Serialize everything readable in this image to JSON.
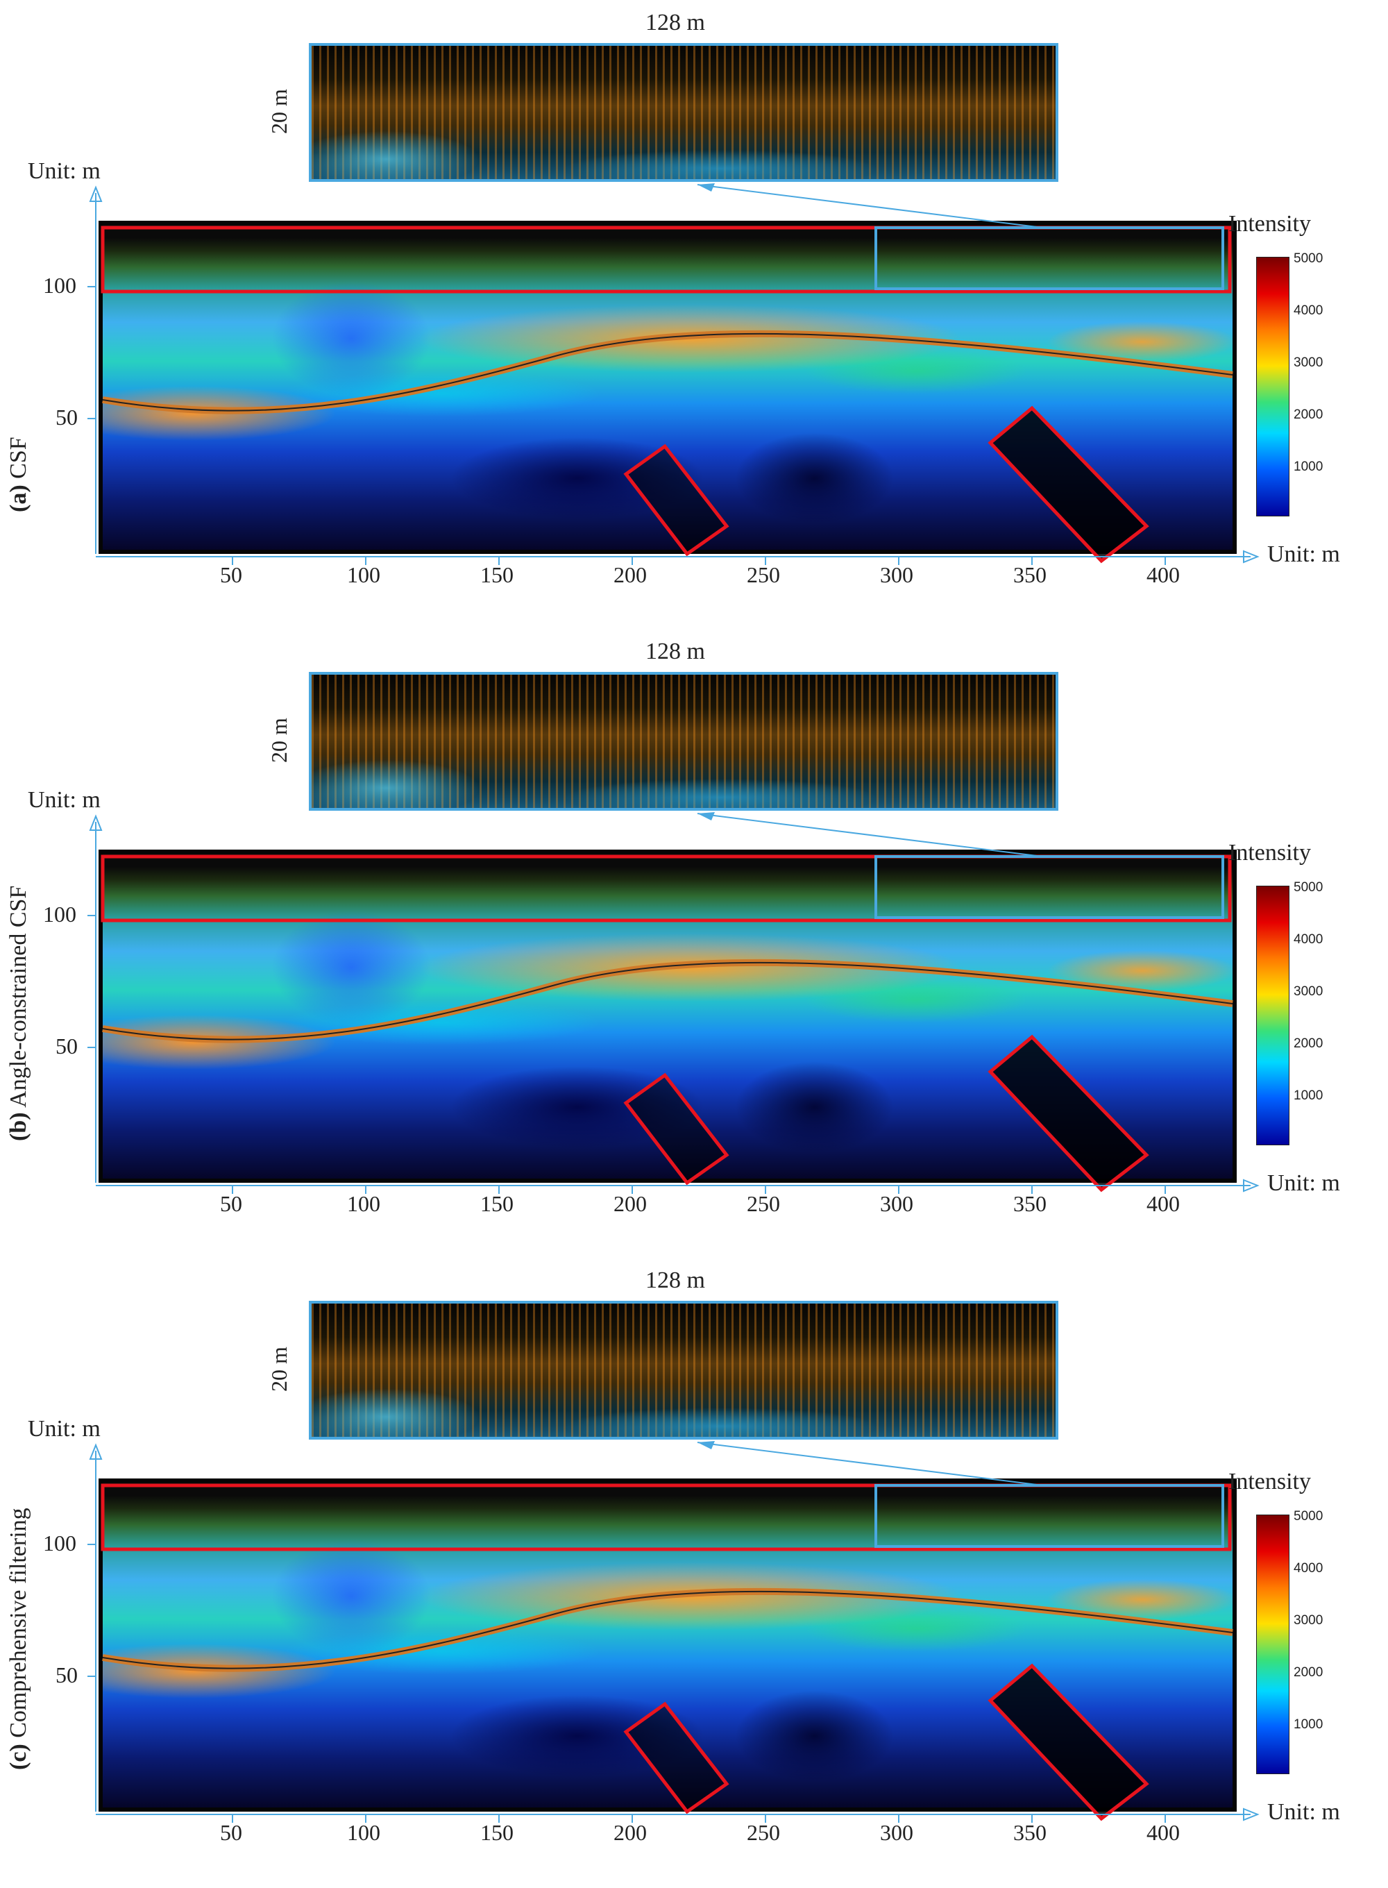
{
  "panels": [
    {
      "label_letter": "(a)",
      "label_text": "CSF"
    },
    {
      "label_letter": "(b)",
      "label_text": "Angle-constrained CSF"
    },
    {
      "label_letter": "(c)",
      "label_text": "Comprehensive filtering"
    }
  ],
  "inset": {
    "width_label": "128 m",
    "height_label": "20 m"
  },
  "axes": {
    "y_unit": "Unit: m",
    "x_unit": "Unit: m",
    "x_ticks": [
      "50",
      "100",
      "150",
      "200",
      "250",
      "300",
      "350",
      "400"
    ],
    "y_ticks": [
      "100",
      "50"
    ]
  },
  "colorbar": {
    "title": "Intensity",
    "ticks": [
      "5000",
      "4000",
      "3000",
      "2000",
      "1000"
    ]
  },
  "colors": {
    "axis": "#4aa8e0",
    "highlight_red": "#e8141e",
    "highlight_blue": "#4aa8e0",
    "background_dark": "#050505"
  }
}
